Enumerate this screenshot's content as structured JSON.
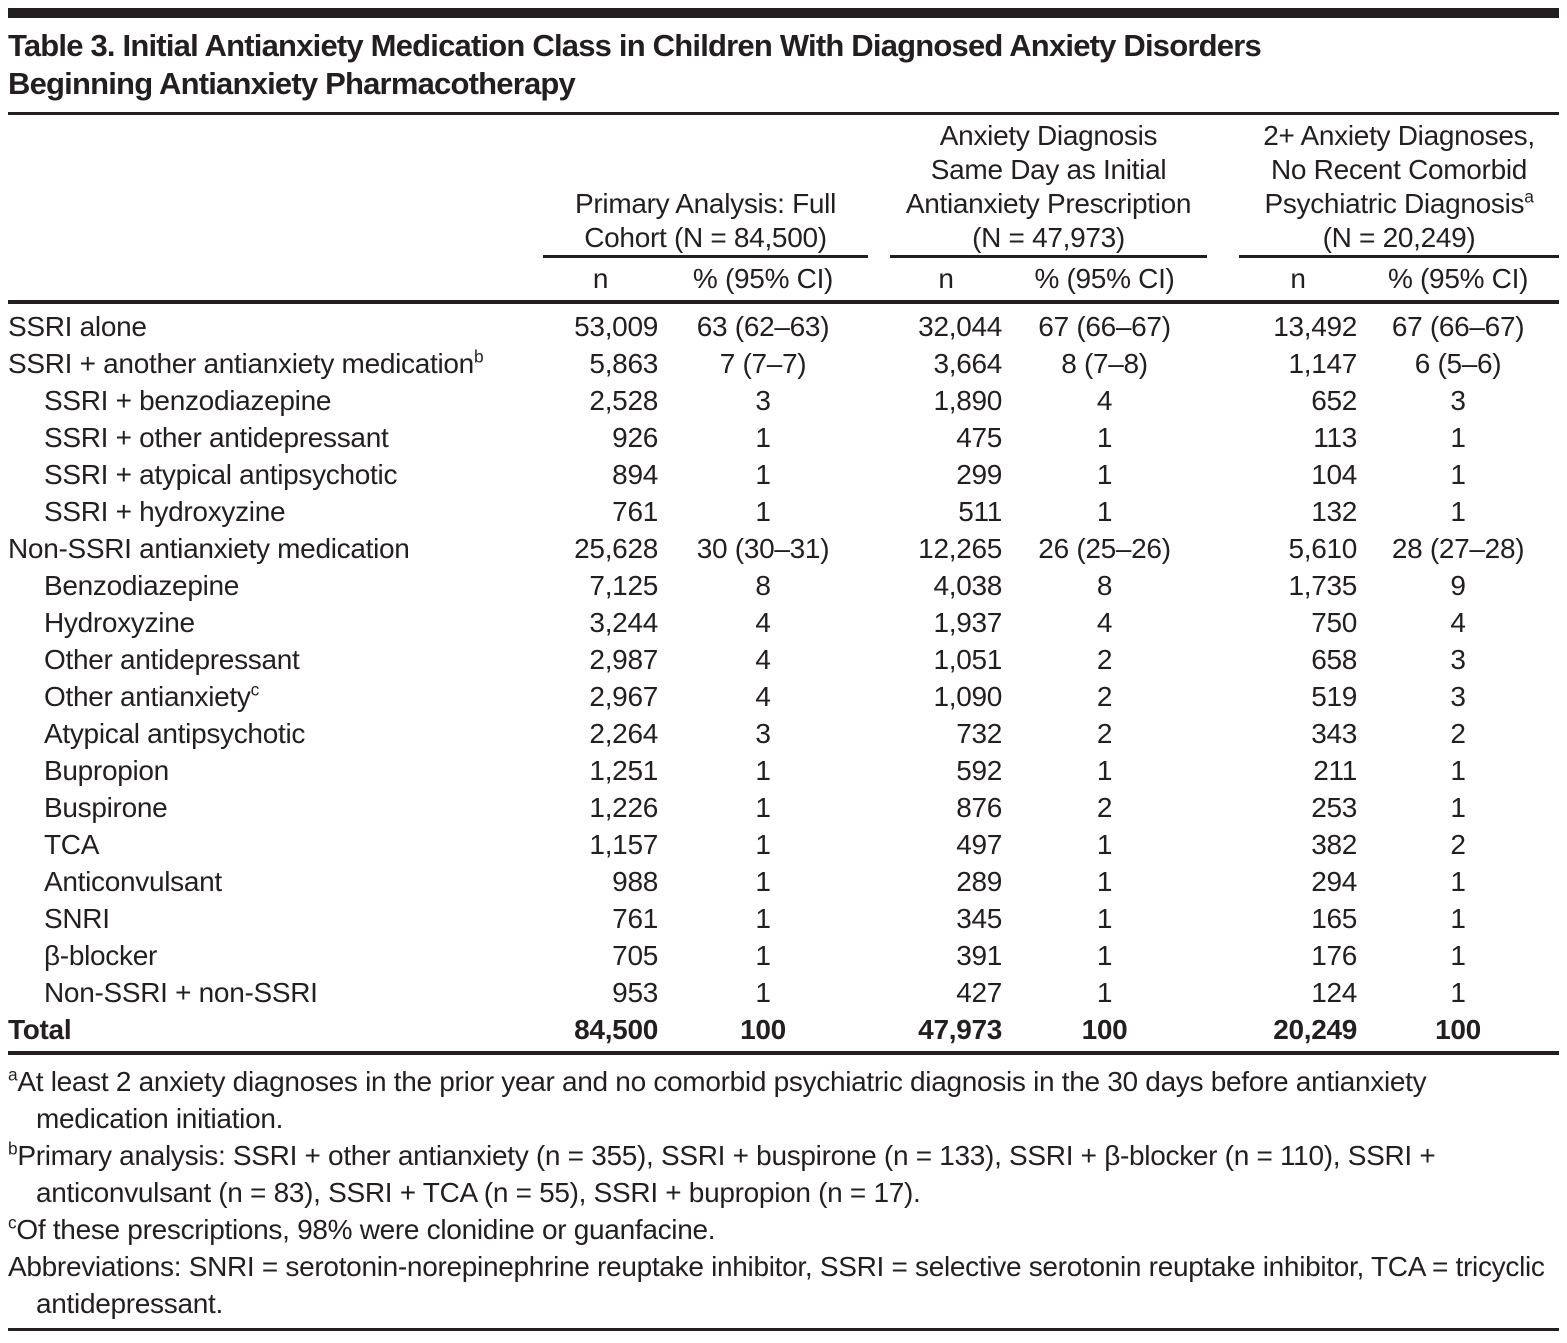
{
  "title": "Table 3. Initial Antianxiety Medication Class in Children With Diagnosed Anxiety Disorders\nBeginning Antianxiety Pharmacotherapy",
  "colors": {
    "text": "#231f20",
    "rule": "#231f20",
    "background": "#ffffff"
  },
  "table": {
    "groups": [
      {
        "lines": [
          {
            "t": "Primary Analysis: Full"
          },
          {
            "t": "Cohort (N = 84,500)"
          }
        ]
      },
      {
        "lines": [
          {
            "t": "Anxiety Diagnosis"
          },
          {
            "t": "Same Day as Initial"
          },
          {
            "t": "Antianxiety Prescription"
          },
          {
            "t": "(N = 47,973)"
          }
        ]
      },
      {
        "lines": [
          {
            "t": "2+ Anxiety Diagnoses,"
          },
          {
            "t": "No Recent Comorbid"
          },
          {
            "t": "Psychiatric Diagnosis",
            "s": "a"
          },
          {
            "t": "(N = 20,249)"
          }
        ]
      }
    ],
    "subheaders": {
      "n": "n",
      "pct": "% (95% CI)"
    },
    "rows": [
      {
        "label": "SSRI alone",
        "indent": 0,
        "cells": [
          "53,009",
          "63 (62–63)",
          "32,044",
          "67 (66–67)",
          "13,492",
          "67 (66–67)"
        ]
      },
      {
        "label": "SSRI + another antianxiety medication",
        "sup": "b",
        "indent": 0,
        "cells": [
          "5,863",
          "7 (7–7)",
          "3,664",
          "8 (7–8)",
          "1,147",
          "6 (5–6)"
        ]
      },
      {
        "label": "SSRI + benzodiazepine",
        "indent": 1,
        "cells": [
          "2,528",
          "3",
          "1,890",
          "4",
          "652",
          "3"
        ]
      },
      {
        "label": "SSRI + other antidepressant",
        "indent": 1,
        "cells": [
          "926",
          "1",
          "475",
          "1",
          "113",
          "1"
        ]
      },
      {
        "label": "SSRI + atypical antipsychotic",
        "indent": 1,
        "cells": [
          "894",
          "1",
          "299",
          "1",
          "104",
          "1"
        ]
      },
      {
        "label": "SSRI + hydroxyzine",
        "indent": 1,
        "cells": [
          "761",
          "1",
          "511",
          "1",
          "132",
          "1"
        ]
      },
      {
        "label": "Non-SSRI antianxiety medication",
        "indent": 0,
        "cells": [
          "25,628",
          "30 (30–31)",
          "12,265",
          "26 (25–26)",
          "5,610",
          "28 (27–28)"
        ]
      },
      {
        "label": "Benzodiazepine",
        "indent": 1,
        "cells": [
          "7,125",
          "8",
          "4,038",
          "8",
          "1,735",
          "9"
        ]
      },
      {
        "label": "Hydroxyzine",
        "indent": 1,
        "cells": [
          "3,244",
          "4",
          "1,937",
          "4",
          "750",
          "4"
        ]
      },
      {
        "label": "Other antidepressant",
        "indent": 1,
        "cells": [
          "2,987",
          "4",
          "1,051",
          "2",
          "658",
          "3"
        ]
      },
      {
        "label": "Other antianxiety",
        "sup": "c",
        "indent": 1,
        "cells": [
          "2,967",
          "4",
          "1,090",
          "2",
          "519",
          "3"
        ]
      },
      {
        "label": "Atypical antipsychotic",
        "indent": 1,
        "cells": [
          "2,264",
          "3",
          "732",
          "2",
          "343",
          "2"
        ]
      },
      {
        "label": "Bupropion",
        "indent": 1,
        "cells": [
          "1,251",
          "1",
          "592",
          "1",
          "211",
          "1"
        ]
      },
      {
        "label": "Buspirone",
        "indent": 1,
        "cells": [
          "1,226",
          "1",
          "876",
          "2",
          "253",
          "1"
        ]
      },
      {
        "label": "TCA",
        "indent": 1,
        "cells": [
          "1,157",
          "1",
          "497",
          "1",
          "382",
          "2"
        ]
      },
      {
        "label": "Anticonvulsant",
        "indent": 1,
        "cells": [
          "988",
          "1",
          "289",
          "1",
          "294",
          "1"
        ]
      },
      {
        "label": "SNRI",
        "indent": 1,
        "cells": [
          "761",
          "1",
          "345",
          "1",
          "165",
          "1"
        ]
      },
      {
        "label": "β-blocker",
        "indent": 1,
        "cells": [
          "705",
          "1",
          "391",
          "1",
          "176",
          "1"
        ]
      },
      {
        "label": "Non-SSRI + non-SSRI",
        "indent": 1,
        "cells": [
          "953",
          "1",
          "427",
          "1",
          "124",
          "1"
        ]
      },
      {
        "label": "Total",
        "indent": 0,
        "bold": true,
        "cells": [
          "84,500",
          "100",
          "47,973",
          "100",
          "20,249",
          "100"
        ]
      }
    ]
  },
  "footnotes": [
    {
      "marker": "a",
      "text": "At least 2 anxiety diagnoses in the prior year and no comorbid psychiatric diagnosis in the 30 days before antianxiety medication initiation."
    },
    {
      "marker": "b",
      "text": "Primary analysis: SSRI + other antianxiety (n = 355), SSRI + buspirone (n = 133), SSRI + β-blocker (n = 110), SSRI + anticonvulsant (n = 83), SSRI + TCA (n = 55), SSRI + bupropion (n = 17)."
    },
    {
      "marker": "c",
      "text": "Of these prescriptions, 98% were clonidine or guanfacine."
    },
    {
      "marker": "",
      "text": "Abbreviations: SNRI = serotonin-norepinephrine reuptake inhibitor, SSRI = selective serotonin reuptake inhibitor, TCA = tricyclic antidepressant."
    }
  ]
}
